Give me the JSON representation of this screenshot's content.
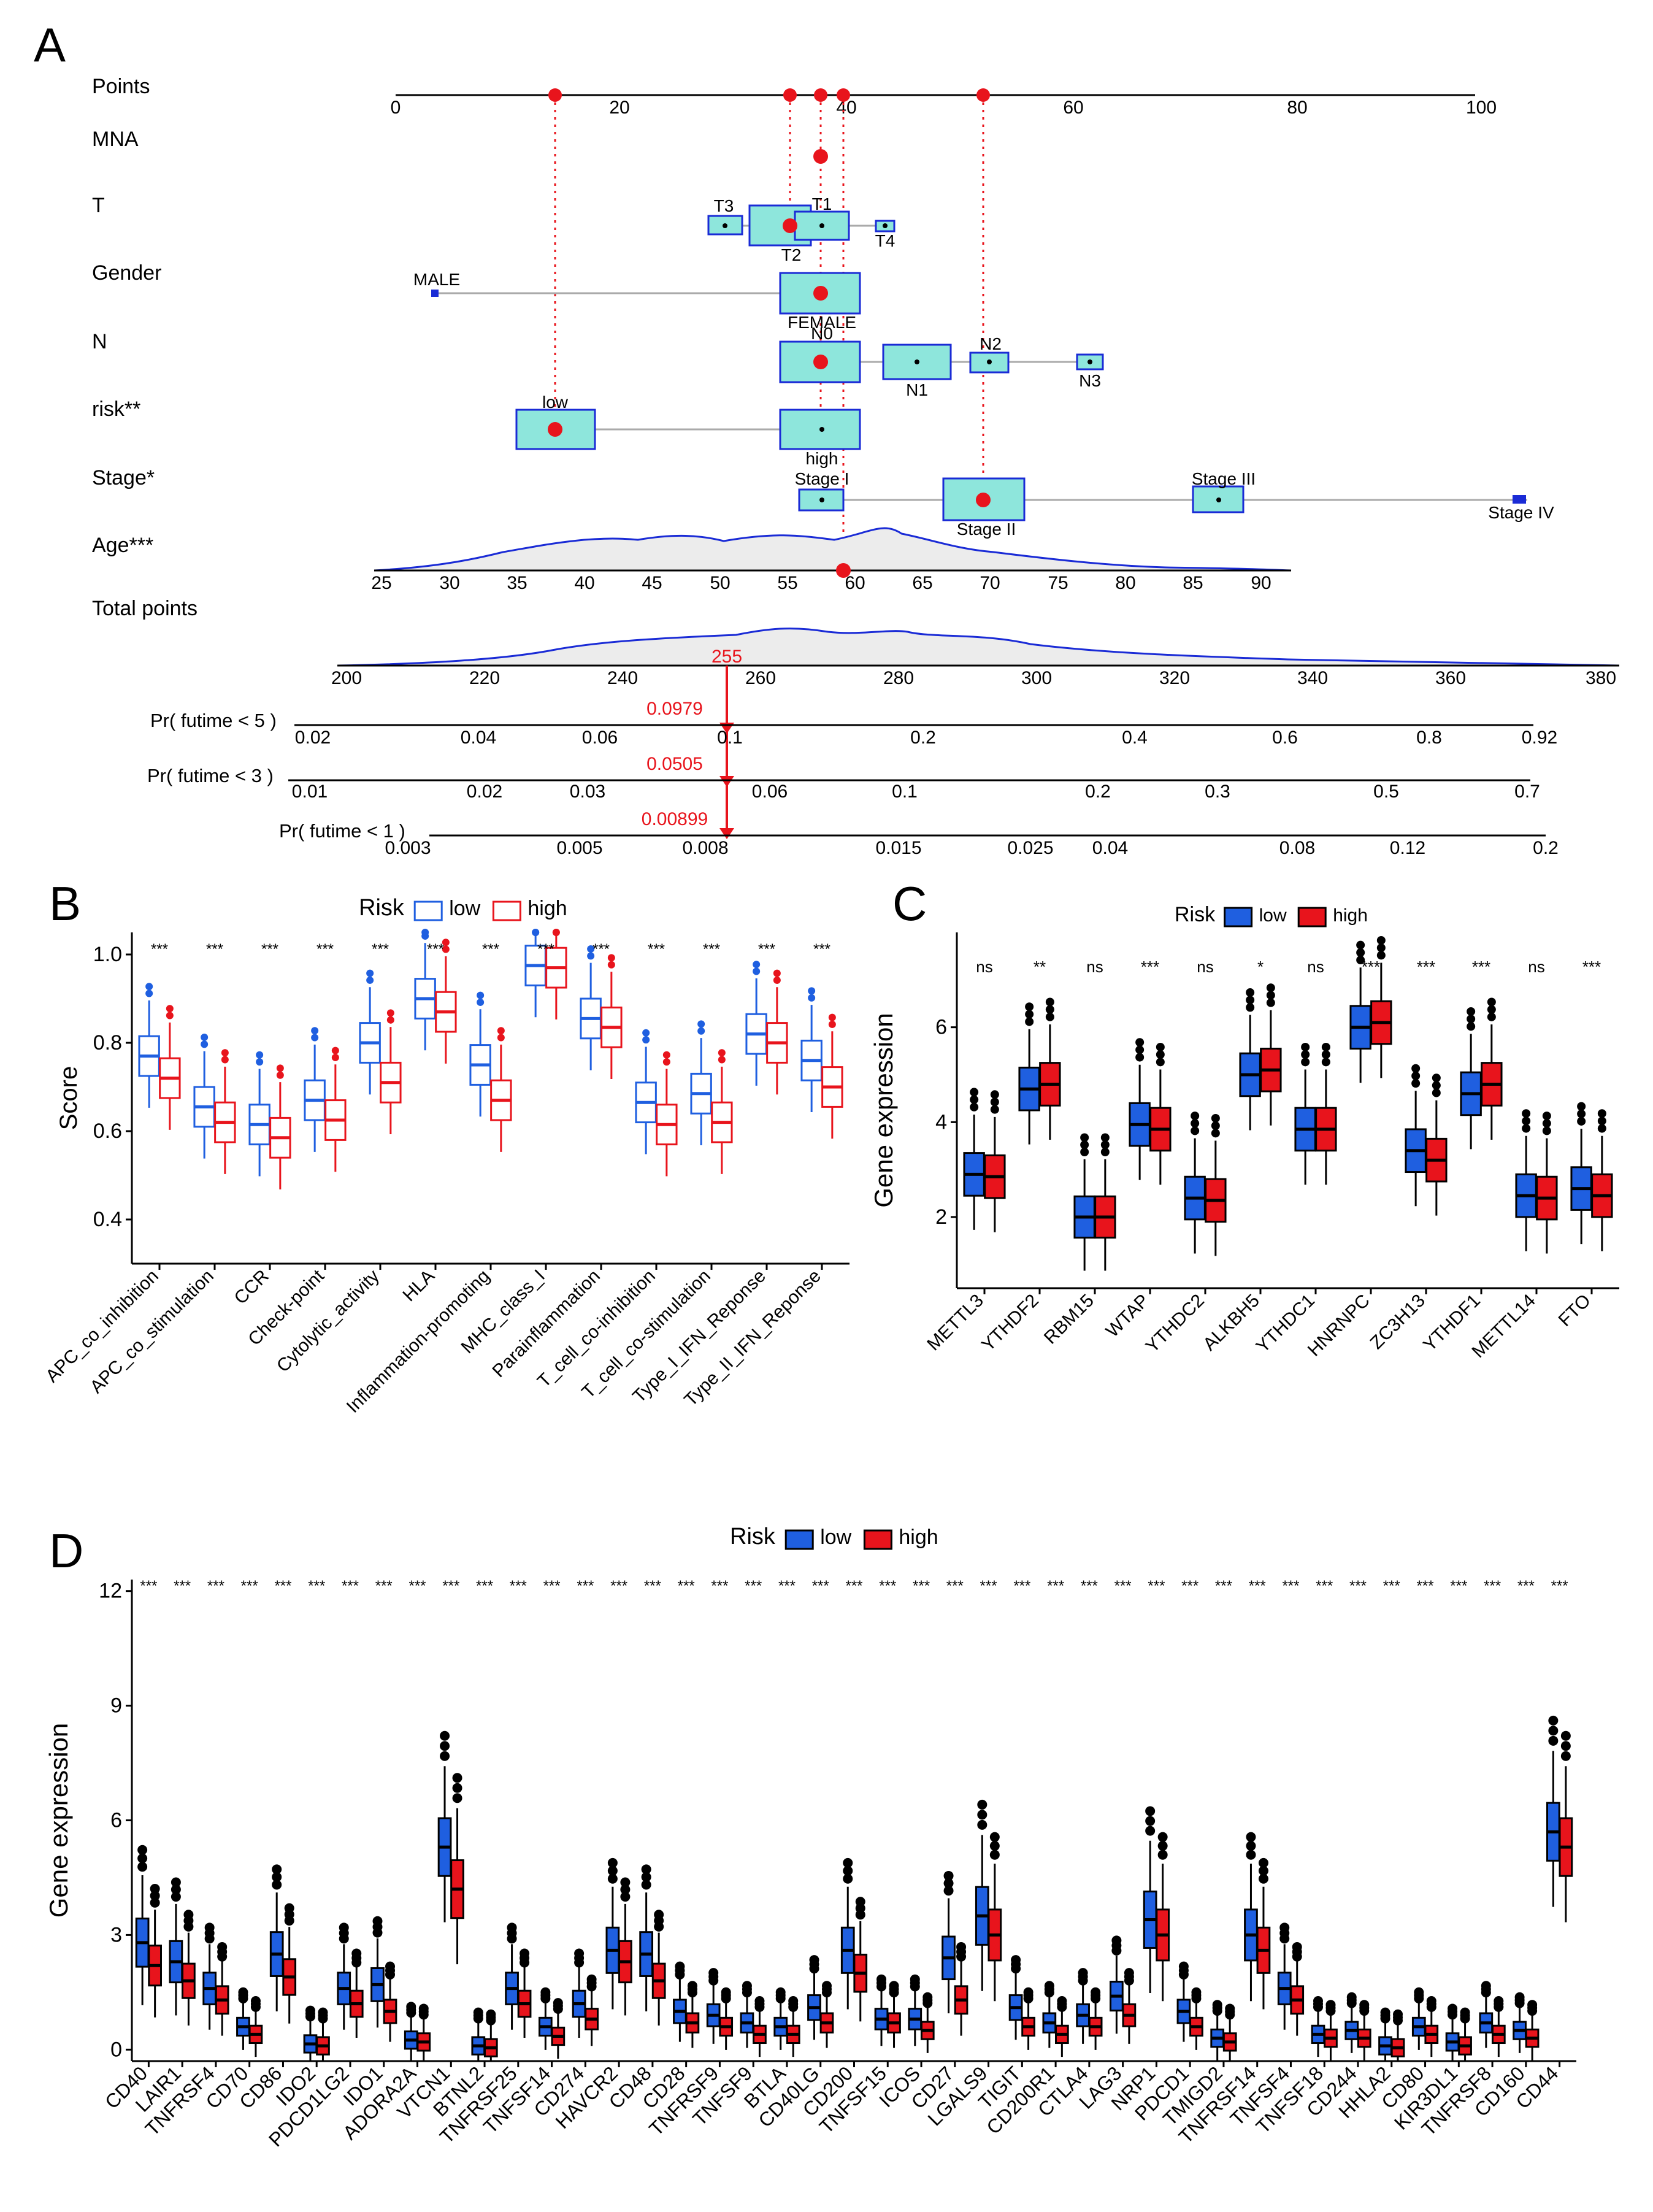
{
  "colors": {
    "low": "#1f5fe0",
    "high": "#e8141c",
    "box_fill": "#8ee6dc",
    "nomo_line": "#1a2bd6",
    "marker": "#e8141c",
    "axis": "#000000",
    "density_fill": "#ececec"
  },
  "panel_a": {
    "letter": "A",
    "rows": {
      "points": "Points",
      "mna": "MNA",
      "t": "T",
      "gender": "Gender",
      "n": "N",
      "risk": "risk**",
      "stage": "Stage*",
      "age": "Age***",
      "total": "Total points",
      "pr5": "Pr( futime < 5 )",
      "pr3": "Pr( futime < 3 )",
      "pr1": "Pr( futime < 1 )"
    },
    "labels": {
      "t": [
        "T3",
        "T1",
        "T2",
        "T4"
      ],
      "gender": [
        "MALE",
        "FEMALE"
      ],
      "n": [
        "N0",
        "N1",
        "N2",
        "N3"
      ],
      "risk": [
        "low",
        "high"
      ],
      "stage": [
        "Stage I",
        "Stage II",
        "Stage III",
        "Stage IV"
      ]
    },
    "ticks": {
      "points": [
        "0",
        "20",
        "40",
        "60",
        "80",
        "100"
      ],
      "age": [
        "25",
        "30",
        "35",
        "40",
        "45",
        "50",
        "55",
        "60",
        "65",
        "70",
        "75",
        "80",
        "85",
        "90"
      ],
      "total": [
        "200",
        "220",
        "240",
        "260",
        "280",
        "300",
        "320",
        "340",
        "360",
        "380"
      ],
      "pr5": [
        "0.02",
        "0.04",
        "0.06",
        "0.1",
        "0.2",
        "0.4",
        "0.6",
        "0.8",
        "0.92"
      ],
      "pr3": [
        "0.01",
        "0.02",
        "0.03",
        "0.06",
        "0.1",
        "0.2",
        "0.3",
        "0.5",
        "0.7"
      ],
      "pr1": [
        "0.003",
        "0.005",
        "0.008",
        "0.015",
        "0.025",
        "0.04",
        "0.08",
        "0.12",
        "0.2"
      ]
    },
    "values": {
      "total": "255",
      "pr5": "0.0979",
      "pr3": "0.0505",
      "pr1": "0.00899"
    }
  },
  "chart_data": [
    {
      "panel": "B",
      "type": "boxplot",
      "legend_title": "Risk",
      "legend": [
        "low",
        "high"
      ],
      "ylabel": "Score",
      "ylim": [
        0.3,
        1.05
      ],
      "yticks": [
        "0.4",
        "0.6",
        "0.8",
        "1.0"
      ],
      "categories": [
        "APC_co_inhibition",
        "APC_co_stimulation",
        "CCR",
        "Check-point",
        "Cytolytic_activity",
        "HLA",
        "Inflammation-promoting",
        "MHC_class_I",
        "Parainflammation",
        "T_cell_co-inhibition",
        "T_cell_co-stimulation",
        "Type_I_IFN_Reponse",
        "Type_II_IFN_Reponse"
      ],
      "significance": [
        "***",
        "***",
        "***",
        "***",
        "***",
        "***",
        "***",
        "***",
        "***",
        "***",
        "***",
        "***",
        "***"
      ],
      "series": [
        {
          "name": "low",
          "medians": [
            0.77,
            0.655,
            0.615,
            0.67,
            0.8,
            0.9,
            0.75,
            0.975,
            0.855,
            0.665,
            0.685,
            0.82,
            0.76
          ]
        },
        {
          "name": "high",
          "medians": [
            0.72,
            0.62,
            0.585,
            0.625,
            0.71,
            0.87,
            0.67,
            0.97,
            0.835,
            0.615,
            0.62,
            0.8,
            0.7
          ]
        }
      ]
    },
    {
      "panel": "C",
      "type": "boxplot",
      "legend_title": "Risk",
      "legend": [
        "low",
        "high"
      ],
      "ylabel": "Gene expression",
      "ylim": [
        0.5,
        8
      ],
      "yticks": [
        "2",
        "4",
        "6"
      ],
      "categories": [
        "METTL3",
        "YTHDF2",
        "RBM15",
        "WTAP",
        "YTHDC2",
        "ALKBH5",
        "YTHDC1",
        "HNRNPC",
        "ZC3H13",
        "YTHDF1",
        "METTL14",
        "FTO"
      ],
      "significance": [
        "ns",
        "**",
        "ns",
        "***",
        "ns",
        "*",
        "ns",
        "***",
        "***",
        "***",
        "ns",
        "***"
      ],
      "series": [
        {
          "name": "low",
          "medians": [
            2.9,
            4.7,
            2.0,
            3.95,
            2.4,
            5.0,
            3.85,
            6.0,
            3.4,
            4.6,
            2.45,
            2.6
          ]
        },
        {
          "name": "high",
          "medians": [
            2.85,
            4.8,
            2.0,
            3.85,
            2.35,
            5.1,
            3.85,
            6.1,
            3.2,
            4.8,
            2.4,
            2.45
          ]
        }
      ]
    },
    {
      "panel": "D",
      "type": "boxplot",
      "legend_title": "Risk",
      "legend": [
        "low",
        "high"
      ],
      "ylabel": "Gene expression",
      "ylim": [
        -0.3,
        12.3
      ],
      "yticks": [
        "0",
        "3",
        "6",
        "9",
        "12"
      ],
      "categories": [
        "CD40",
        "LAIR1",
        "TNFRSF4",
        "CD70",
        "CD86",
        "IDO2",
        "PDCD1LG2",
        "IDO1",
        "ADORA2A",
        "VTCN1",
        "BTNL2",
        "TNFRSF25",
        "TNFSF14",
        "CD274",
        "HAVCR2",
        "CD48",
        "CD28",
        "TNFRSF9",
        "TNFSF9",
        "BTLA",
        "CD40LG",
        "CD200",
        "TNFSF15",
        "ICOS",
        "CD27",
        "LGALS9",
        "TIGIT",
        "CD200R1",
        "CTLA4",
        "LAG3",
        "NRP1",
        "PDCD1",
        "TMIGD2",
        "TNFRSF14",
        "TNFSF4",
        "TNFSF18",
        "CD244",
        "HHLA2",
        "CD80",
        "KIR3DL1",
        "TNFRSF8",
        "CD160",
        "CD44"
      ],
      "significance_each": "***",
      "series": [
        {
          "name": "low",
          "medians": [
            2.8,
            2.3,
            1.6,
            0.6,
            2.5,
            0.15,
            1.6,
            1.7,
            0.25,
            5.3,
            0.1,
            1.6,
            0.6,
            1.2,
            2.6,
            2.5,
            1.0,
            0.9,
            0.7,
            0.6,
            1.1,
            2.6,
            0.8,
            0.8,
            2.4,
            3.5,
            1.1,
            0.7,
            0.9,
            1.4,
            3.4,
            1.0,
            0.3,
            3.0,
            1.6,
            0.4,
            0.5,
            0.1,
            0.6,
            0.2,
            0.7,
            0.5,
            5.7
          ]
        },
        {
          "name": "high",
          "medians": [
            2.2,
            1.8,
            1.3,
            0.4,
            1.9,
            0.1,
            1.2,
            1.0,
            0.2,
            4.2,
            0.05,
            1.2,
            0.35,
            0.8,
            2.3,
            1.8,
            0.7,
            0.6,
            0.4,
            0.4,
            0.7,
            2.0,
            0.7,
            0.5,
            1.3,
            3.0,
            0.6,
            0.4,
            0.6,
            0.9,
            3.0,
            0.6,
            0.2,
            2.6,
            1.3,
            0.3,
            0.3,
            0.05,
            0.4,
            0.1,
            0.4,
            0.3,
            5.3
          ]
        }
      ]
    }
  ]
}
